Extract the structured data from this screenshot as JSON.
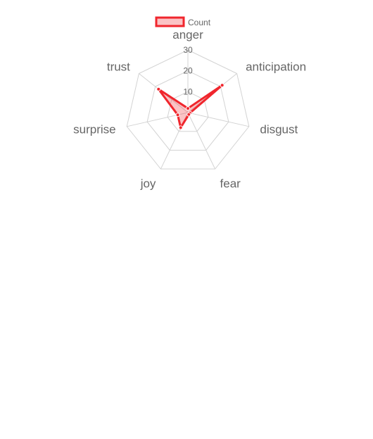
{
  "chart_data": {
    "type": "radar",
    "legend": {
      "label": "Count",
      "position": "top"
    },
    "categories": [
      "anger",
      "anticipation",
      "disgust",
      "fear",
      "joy",
      "surprise",
      "trust"
    ],
    "series": [
      {
        "name": "Count",
        "values": [
          2,
          21,
          1,
          1,
          8,
          5,
          18
        ]
      }
    ],
    "rlim": [
      0,
      30
    ],
    "ticks": [
      10,
      20,
      30
    ],
    "colors": {
      "line": "#f0262d",
      "fill": "rgba(240,38,45,0.28)",
      "grid": "#d3d3d3",
      "text": "#666666"
    }
  }
}
